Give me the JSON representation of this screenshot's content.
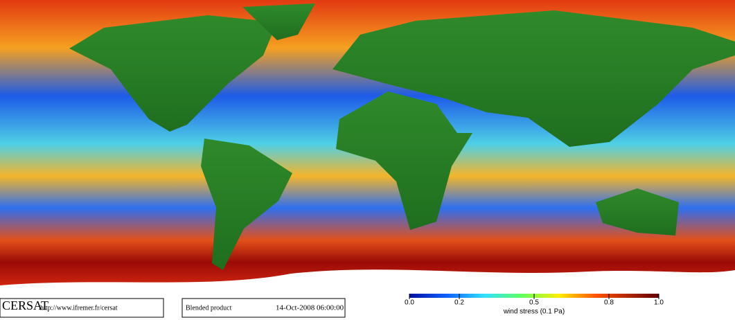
{
  "logo": "CERSAT",
  "url": "http://www.ifremer.fr/cersat",
  "product": "Blended product",
  "date": "14-Oct-2008 06:00:00",
  "colorbar": {
    "label": "wind stress (0.1 Pa)",
    "lim": [
      0,
      1
    ],
    "ticks": [
      {
        "value": 0,
        "label": "0.0"
      },
      0.2,
      0.5,
      0.8,
      {
        "value": 1,
        "label": "1.0"
      }
    ]
  }
}
